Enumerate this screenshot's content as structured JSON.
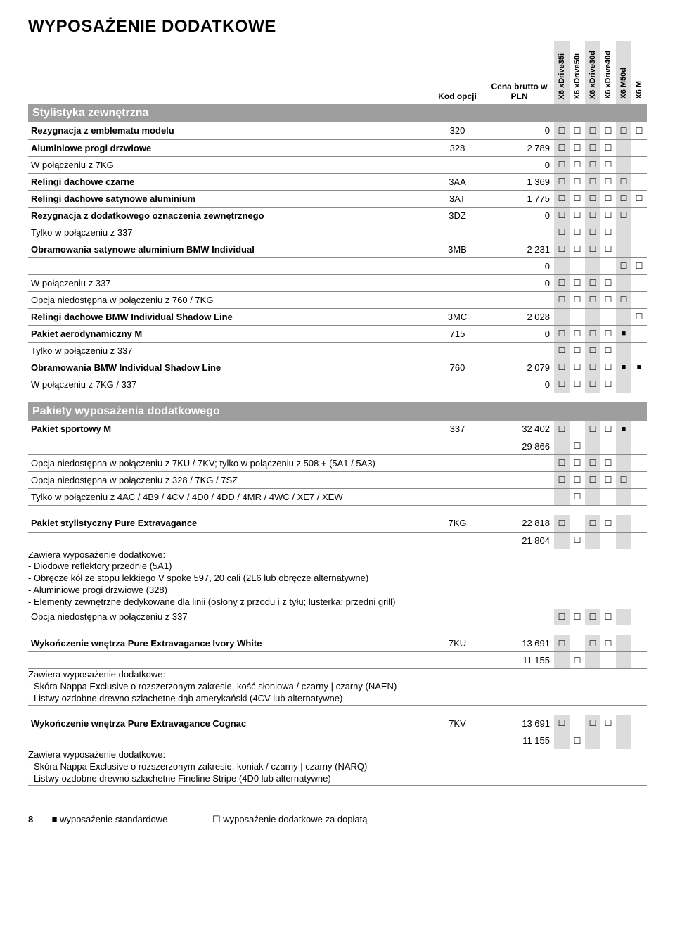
{
  "page_title": "WYPOSAŻENIE DODATKOWE",
  "columns": {
    "kod": "Kod opcji",
    "cena": "Cena brutto w PLN"
  },
  "models": [
    "X6 xDrive35i",
    "X6 xDrive50i",
    "X6 xDrive30d",
    "X6 xDrive40d",
    "X6 M50d",
    "X6 M"
  ],
  "section1": {
    "title": "Stylistyka zewnętrzna",
    "rows": [
      {
        "name": "Rezygnacja z emblematu modelu",
        "bold": true,
        "kod": "320",
        "price": "0",
        "m": [
          "e",
          "e",
          "e",
          "e",
          "e",
          "e"
        ]
      },
      {
        "name": "Aluminiowe progi drzwiowe",
        "bold": true,
        "kod": "328",
        "price": "2 789",
        "m": [
          "e",
          "e",
          "e",
          "e",
          "",
          ""
        ]
      },
      {
        "name": "W połączeniu z 7KG",
        "kod": "",
        "price": "0",
        "m": [
          "e",
          "e",
          "e",
          "e",
          "",
          ""
        ]
      },
      {
        "name": "Relingi dachowe czarne",
        "bold": true,
        "kod": "3AA",
        "price": "1 369",
        "m": [
          "e",
          "e",
          "e",
          "e",
          "e",
          ""
        ]
      },
      {
        "name": "Relingi dachowe satynowe aluminium",
        "bold": true,
        "kod": "3AT",
        "price": "1 775",
        "m": [
          "e",
          "e",
          "e",
          "e",
          "e",
          "e"
        ]
      },
      {
        "name": "Rezygnacja z dodatkowego oznaczenia zewnętrznego",
        "bold": true,
        "kod": "3DZ",
        "price": "0",
        "m": [
          "e",
          "e",
          "e",
          "e",
          "e",
          ""
        ]
      },
      {
        "name": "Tylko w połączeniu z 337",
        "kod": "",
        "price": "",
        "m": [
          "e",
          "e",
          "e",
          "e",
          "",
          ""
        ]
      },
      {
        "name": "Obramowania satynowe aluminium BMW Individual",
        "bold": true,
        "kod": "3MB",
        "price": "2 231",
        "m": [
          "e",
          "e",
          "e",
          "e",
          "",
          ""
        ]
      },
      {
        "name": "",
        "kod": "",
        "price": "0",
        "m": [
          "",
          "",
          "",
          "",
          "e",
          "e"
        ]
      },
      {
        "name": "W połączeniu z 337",
        "kod": "",
        "price": "0",
        "m": [
          "e",
          "e",
          "e",
          "e",
          "",
          ""
        ]
      },
      {
        "name": "Opcja niedostępna w połączeniu z 760 / 7KG",
        "kod": "",
        "price": "",
        "m": [
          "e",
          "e",
          "e",
          "e",
          "e",
          ""
        ]
      },
      {
        "name": "Relingi dachowe BMW Individual Shadow Line",
        "bold": true,
        "kod": "3MC",
        "price": "2 028",
        "m": [
          "",
          "",
          "",
          "",
          "",
          "e"
        ]
      },
      {
        "name": "Pakiet aerodynamiczny M",
        "bold": true,
        "kod": "715",
        "price": "0",
        "m": [
          "e",
          "e",
          "e",
          "e",
          "f",
          ""
        ]
      },
      {
        "name": "Tylko w połączeniu z 337",
        "kod": "",
        "price": "",
        "m": [
          "e",
          "e",
          "e",
          "e",
          "",
          ""
        ]
      },
      {
        "name": "Obramowania BMW Individual Shadow Line",
        "bold": true,
        "kod": "760",
        "price": "2 079",
        "m": [
          "e",
          "e",
          "e",
          "e",
          "f",
          "f"
        ]
      },
      {
        "name": "W połączeniu z 7KG / 337",
        "kod": "",
        "price": "0",
        "m": [
          "e",
          "e",
          "e",
          "e",
          "",
          ""
        ]
      }
    ]
  },
  "section2": {
    "title": "Pakiety wyposażenia dodatkowego",
    "rows1": [
      {
        "name": "Pakiet sportowy M",
        "bold": true,
        "kod": "337",
        "price": "32 402",
        "m": [
          "e",
          "",
          "e",
          "e",
          "f",
          ""
        ]
      },
      {
        "name": "",
        "kod": "",
        "price": "29 866",
        "m": [
          "",
          "e",
          "",
          "",
          "",
          ""
        ]
      },
      {
        "name": "Opcja niedostępna w połączeniu z 7KU / 7KV; tylko w połączeniu z 508 + (5A1 / 5A3)",
        "kod": "",
        "price": "",
        "m": [
          "e",
          "e",
          "e",
          "e",
          "",
          ""
        ]
      },
      {
        "name": "Opcja niedostępna w połączeniu z 328 / 7KG / 7SZ",
        "kod": "",
        "price": "",
        "m": [
          "e",
          "e",
          "e",
          "e",
          "e",
          ""
        ]
      },
      {
        "name": "Tylko w połączeniu z 4AC / 4B9 / 4CV / 4D0 / 4DD / 4MR / 4WC / XE7 / XEW",
        "kod": "",
        "price": "",
        "m": [
          "",
          "e",
          "",
          "",
          "",
          ""
        ]
      }
    ],
    "rows2": [
      {
        "name": "Pakiet stylistyczny Pure Extravagance",
        "bold": true,
        "kod": "7KG",
        "price": "22 818",
        "m": [
          "e",
          "",
          "e",
          "e",
          "",
          ""
        ]
      },
      {
        "name": "",
        "kod": "",
        "price": "21 804",
        "m": [
          "",
          "e",
          "",
          "",
          "",
          ""
        ]
      }
    ],
    "desc2": "Zawiera wyposażenie dodatkowe:\n- Diodowe reflektory przednie (5A1)\n- Obręcze kół ze stopu lekkiego V spoke 597, 20 cali (2L6 lub obręcze alternatywne)\n- Aluminiowe progi drzwiowe (328)\n- Elementy zewnętrzne dedykowane dla linii (osłony z przodu i z tyłu; lusterka; przedni grill)",
    "rows2b": [
      {
        "name": "Opcja niedostępna w połączeniu z 337",
        "kod": "",
        "price": "",
        "m": [
          "e",
          "e",
          "e",
          "e",
          "",
          ""
        ]
      }
    ],
    "rows3": [
      {
        "name": "Wykończenie wnętrza Pure Extravagance Ivory White",
        "bold": true,
        "kod": "7KU",
        "price": "13 691",
        "m": [
          "e",
          "",
          "e",
          "e",
          "",
          ""
        ]
      },
      {
        "name": "",
        "kod": "",
        "price": "11 155",
        "m": [
          "",
          "e",
          "",
          "",
          "",
          ""
        ]
      }
    ],
    "desc3": "Zawiera wyposażenie dodatkowe:\n- Skóra Nappa Exclusive o rozszerzonym zakresie, kość słoniowa / czarny | czarny (NAEN)\n- Listwy ozdobne drewno szlachetne dąb amerykański (4CV lub alternatywne)",
    "rows4": [
      {
        "name": "Wykończenie wnętrza Pure Extravagance Cognac",
        "bold": true,
        "kod": "7KV",
        "price": "13 691",
        "m": [
          "e",
          "",
          "e",
          "e",
          "",
          ""
        ]
      },
      {
        "name": "",
        "kod": "",
        "price": "11 155",
        "m": [
          "",
          "e",
          "",
          "",
          "",
          ""
        ]
      }
    ],
    "desc4": "Zawiera wyposażenie dodatkowe:\n- Skóra Nappa Exclusive o rozszerzonym zakresie, koniak / czarny | czarny (NARQ)\n- Listwy ozdobne drewno szlachetne Fineline Stripe (4D0 lub alternatywne)"
  },
  "footer": {
    "page": "8",
    "std": "wyposażenie standardowe",
    "opt": "wyposażenie dodatkowe za dopłatą"
  }
}
